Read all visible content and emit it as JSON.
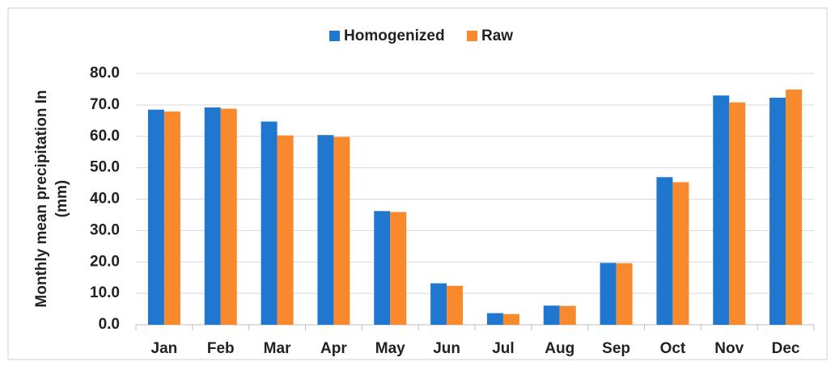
{
  "chart_data": {
    "type": "bar",
    "y_label": [
      "Monthly mean precipitation In",
      "(mm)"
    ],
    "categories": [
      "Jan",
      "Feb",
      "Mar",
      "Apr",
      "May",
      "Jun",
      "Jul",
      "Aug",
      "Sep",
      "Oct",
      "Nov",
      "Dec"
    ],
    "series": [
      {
        "name": "Homogenized",
        "color": "#1f77cf",
        "values": [
          68.5,
          69.2,
          64.7,
          60.4,
          36.2,
          13.2,
          3.7,
          6.1,
          19.7,
          47.0,
          73.0,
          72.3
        ]
      },
      {
        "name": "Raw",
        "color": "#f8892d",
        "values": [
          67.9,
          68.8,
          60.3,
          59.8,
          35.9,
          12.4,
          3.4,
          6.0,
          19.6,
          45.4,
          70.8,
          74.9
        ]
      }
    ],
    "ylim": [
      0,
      80
    ],
    "yticks": [
      {
        "value": 0,
        "label": "0.0"
      },
      {
        "value": 10,
        "label": "10.0"
      },
      {
        "value": 20,
        "label": "20.0"
      },
      {
        "value": 30,
        "label": "30.0"
      },
      {
        "value": 40,
        "label": "40.0"
      },
      {
        "value": 50,
        "label": "50.0"
      },
      {
        "value": 60,
        "label": "60.0"
      },
      {
        "value": 70,
        "label": "70.0"
      },
      {
        "value": 80,
        "label": "80.0"
      }
    ],
    "grid": true,
    "legend": "top"
  }
}
